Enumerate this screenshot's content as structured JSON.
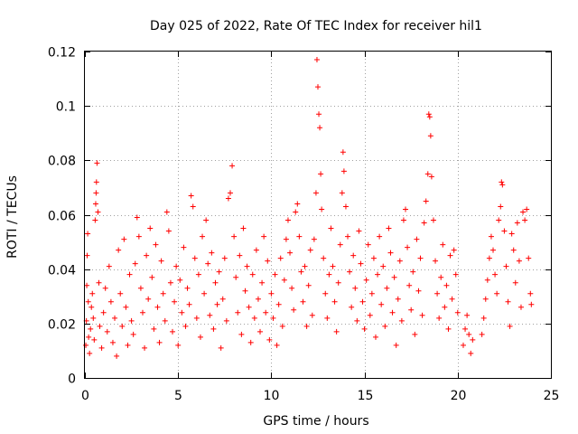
{
  "chart_data": {
    "type": "scatter",
    "title": "Day 025 of 2022, Rate Of TEC Index for receiver hil1",
    "xlabel": "GPS time / hours",
    "ylabel": "ROTI / TECUs",
    "xlim": [
      0,
      25
    ],
    "ylim": [
      0,
      0.12
    ],
    "x_ticks": [
      0,
      5,
      10,
      15,
      20,
      25
    ],
    "y_ticks": [
      0,
      0.02,
      0.04,
      0.06,
      0.08,
      0.1,
      0.12
    ],
    "x_tick_labels": [
      "0",
      "5",
      "10",
      "15",
      "20",
      "25"
    ],
    "y_tick_labels": [
      "0",
      "0.02",
      "0.04",
      "0.06",
      "0.08",
      "0.1",
      "0.12"
    ],
    "grid": true,
    "marker": "+",
    "color": "#ff0000",
    "series": [
      {
        "points": [
          [
            0.05,
            0.012
          ],
          [
            0.08,
            0.021
          ],
          [
            0.1,
            0.034
          ],
          [
            0.12,
            0.045
          ],
          [
            0.15,
            0.053
          ],
          [
            0.18,
            0.028
          ],
          [
            0.2,
            0.015
          ],
          [
            0.25,
            0.009
          ],
          [
            0.3,
            0.018
          ],
          [
            0.35,
            0.026
          ],
          [
            0.4,
            0.031
          ],
          [
            0.45,
            0.022
          ],
          [
            0.5,
            0.014
          ],
          [
            0.55,
            0.058
          ],
          [
            0.58,
            0.064
          ],
          [
            0.6,
            0.068
          ],
          [
            0.62,
            0.072
          ],
          [
            0.65,
            0.079
          ],
          [
            0.7,
            0.061
          ],
          [
            0.75,
            0.035
          ],
          [
            0.8,
            0.019
          ],
          [
            0.9,
            0.011
          ],
          [
            1.0,
            0.024
          ],
          [
            1.1,
            0.033
          ],
          [
            1.2,
            0.017
          ],
          [
            1.3,
            0.041
          ],
          [
            1.4,
            0.028
          ],
          [
            1.5,
            0.013
          ],
          [
            1.6,
            0.022
          ],
          [
            1.7,
            0.008
          ],
          [
            1.8,
            0.047
          ],
          [
            1.9,
            0.031
          ],
          [
            2.0,
            0.019
          ],
          [
            2.1,
            0.051
          ],
          [
            2.2,
            0.026
          ],
          [
            2.3,
            0.012
          ],
          [
            2.4,
            0.038
          ],
          [
            2.5,
            0.021
          ],
          [
            2.6,
            0.016
          ],
          [
            2.7,
            0.042
          ],
          [
            2.8,
            0.059
          ],
          [
            2.9,
            0.052
          ],
          [
            3.0,
            0.033
          ],
          [
            3.1,
            0.024
          ],
          [
            3.2,
            0.011
          ],
          [
            3.3,
            0.045
          ],
          [
            3.4,
            0.029
          ],
          [
            3.5,
            0.055
          ],
          [
            3.6,
            0.037
          ],
          [
            3.7,
            0.018
          ],
          [
            3.8,
            0.049
          ],
          [
            3.9,
            0.026
          ],
          [
            4.0,
            0.013
          ],
          [
            4.1,
            0.043
          ],
          [
            4.2,
            0.031
          ],
          [
            4.3,
            0.021
          ],
          [
            4.4,
            0.061
          ],
          [
            4.5,
            0.054
          ],
          [
            4.6,
            0.035
          ],
          [
            4.7,
            0.017
          ],
          [
            4.8,
            0.028
          ],
          [
            4.9,
            0.041
          ],
          [
            5.0,
            0.012
          ],
          [
            5.1,
            0.036
          ],
          [
            5.2,
            0.024
          ],
          [
            5.3,
            0.048
          ],
          [
            5.4,
            0.019
          ],
          [
            5.5,
            0.033
          ],
          [
            5.6,
            0.027
          ],
          [
            5.7,
            0.067
          ],
          [
            5.8,
            0.063
          ],
          [
            5.9,
            0.044
          ],
          [
            6.0,
            0.022
          ],
          [
            6.1,
            0.038
          ],
          [
            6.2,
            0.015
          ],
          [
            6.3,
            0.052
          ],
          [
            6.4,
            0.031
          ],
          [
            6.5,
            0.058
          ],
          [
            6.6,
            0.042
          ],
          [
            6.7,
            0.023
          ],
          [
            6.8,
            0.046
          ],
          [
            6.9,
            0.018
          ],
          [
            7.0,
            0.035
          ],
          [
            7.1,
            0.027
          ],
          [
            7.2,
            0.039
          ],
          [
            7.3,
            0.011
          ],
          [
            7.4,
            0.029
          ],
          [
            7.5,
            0.044
          ],
          [
            7.6,
            0.021
          ],
          [
            7.7,
            0.066
          ],
          [
            7.8,
            0.068
          ],
          [
            7.9,
            0.078
          ],
          [
            8.0,
            0.052
          ],
          [
            8.1,
            0.037
          ],
          [
            8.2,
            0.024
          ],
          [
            8.3,
            0.045
          ],
          [
            8.4,
            0.016
          ],
          [
            8.5,
            0.055
          ],
          [
            8.6,
            0.032
          ],
          [
            8.7,
            0.041
          ],
          [
            8.8,
            0.026
          ],
          [
            8.9,
            0.013
          ],
          [
            9.0,
            0.038
          ],
          [
            9.1,
            0.022
          ],
          [
            9.2,
            0.047
          ],
          [
            9.3,
            0.029
          ],
          [
            9.4,
            0.017
          ],
          [
            9.5,
            0.035
          ],
          [
            9.6,
            0.052
          ],
          [
            9.7,
            0.024
          ],
          [
            9.8,
            0.043
          ],
          [
            9.9,
            0.014
          ],
          [
            10.0,
            0.031
          ],
          [
            10.1,
            0.022
          ],
          [
            10.2,
            0.038
          ],
          [
            10.3,
            0.012
          ],
          [
            10.4,
            0.027
          ],
          [
            10.5,
            0.044
          ],
          [
            10.6,
            0.019
          ],
          [
            10.7,
            0.036
          ],
          [
            10.8,
            0.051
          ],
          [
            10.9,
            0.058
          ],
          [
            11.0,
            0.046
          ],
          [
            11.1,
            0.033
          ],
          [
            11.2,
            0.025
          ],
          [
            11.3,
            0.061
          ],
          [
            11.4,
            0.064
          ],
          [
            11.5,
            0.052
          ],
          [
            11.6,
            0.039
          ],
          [
            11.7,
            0.028
          ],
          [
            11.8,
            0.041
          ],
          [
            11.9,
            0.019
          ],
          [
            12.0,
            0.034
          ],
          [
            12.1,
            0.047
          ],
          [
            12.2,
            0.023
          ],
          [
            12.3,
            0.051
          ],
          [
            12.4,
            0.068
          ],
          [
            12.45,
            0.117
          ],
          [
            12.5,
            0.107
          ],
          [
            12.55,
            0.097
          ],
          [
            12.6,
            0.092
          ],
          [
            12.65,
            0.075
          ],
          [
            12.7,
            0.062
          ],
          [
            12.8,
            0.044
          ],
          [
            12.9,
            0.031
          ],
          [
            13.0,
            0.022
          ],
          [
            13.1,
            0.038
          ],
          [
            13.2,
            0.055
          ],
          [
            13.3,
            0.041
          ],
          [
            13.4,
            0.028
          ],
          [
            13.5,
            0.017
          ],
          [
            13.6,
            0.035
          ],
          [
            13.7,
            0.049
          ],
          [
            13.8,
            0.068
          ],
          [
            13.85,
            0.083
          ],
          [
            13.9,
            0.076
          ],
          [
            14.0,
            0.063
          ],
          [
            14.1,
            0.052
          ],
          [
            14.2,
            0.039
          ],
          [
            14.3,
            0.026
          ],
          [
            14.4,
            0.045
          ],
          [
            14.5,
            0.033
          ],
          [
            14.6,
            0.021
          ],
          [
            14.7,
            0.054
          ],
          [
            14.8,
            0.042
          ],
          [
            14.9,
            0.028
          ],
          [
            15.0,
            0.018
          ],
          [
            15.1,
            0.036
          ],
          [
            15.2,
            0.049
          ],
          [
            15.3,
            0.023
          ],
          [
            15.4,
            0.031
          ],
          [
            15.5,
            0.044
          ],
          [
            15.6,
            0.015
          ],
          [
            15.7,
            0.038
          ],
          [
            15.8,
            0.052
          ],
          [
            15.9,
            0.027
          ],
          [
            16.0,
            0.041
          ],
          [
            16.1,
            0.019
          ],
          [
            16.2,
            0.033
          ],
          [
            16.3,
            0.055
          ],
          [
            16.4,
            0.046
          ],
          [
            16.5,
            0.024
          ],
          [
            16.6,
            0.037
          ],
          [
            16.7,
            0.012
          ],
          [
            16.8,
            0.029
          ],
          [
            16.9,
            0.043
          ],
          [
            17.0,
            0.021
          ],
          [
            17.1,
            0.058
          ],
          [
            17.2,
            0.062
          ],
          [
            17.3,
            0.048
          ],
          [
            17.4,
            0.034
          ],
          [
            17.5,
            0.025
          ],
          [
            17.6,
            0.039
          ],
          [
            17.7,
            0.016
          ],
          [
            17.8,
            0.051
          ],
          [
            17.9,
            0.032
          ],
          [
            18.0,
            0.044
          ],
          [
            18.1,
            0.023
          ],
          [
            18.2,
            0.057
          ],
          [
            18.3,
            0.065
          ],
          [
            18.4,
            0.075
          ],
          [
            18.45,
            0.097
          ],
          [
            18.5,
            0.096
          ],
          [
            18.55,
            0.089
          ],
          [
            18.6,
            0.074
          ],
          [
            18.7,
            0.058
          ],
          [
            18.8,
            0.043
          ],
          [
            18.9,
            0.031
          ],
          [
            19.0,
            0.022
          ],
          [
            19.1,
            0.037
          ],
          [
            19.2,
            0.049
          ],
          [
            19.3,
            0.026
          ],
          [
            19.4,
            0.034
          ],
          [
            19.5,
            0.018
          ],
          [
            19.6,
            0.045
          ],
          [
            19.7,
            0.029
          ],
          [
            19.8,
            0.047
          ],
          [
            19.9,
            0.038
          ],
          [
            20.0,
            0.024
          ],
          [
            20.3,
            0.012
          ],
          [
            20.4,
            0.018
          ],
          [
            20.5,
            0.023
          ],
          [
            20.6,
            0.016
          ],
          [
            20.7,
            0.009
          ],
          [
            20.8,
            0.014
          ],
          [
            21.3,
            0.016
          ],
          [
            21.4,
            0.022
          ],
          [
            21.5,
            0.029
          ],
          [
            21.6,
            0.036
          ],
          [
            21.7,
            0.044
          ],
          [
            21.8,
            0.052
          ],
          [
            21.9,
            0.047
          ],
          [
            22.0,
            0.038
          ],
          [
            22.1,
            0.031
          ],
          [
            22.2,
            0.058
          ],
          [
            22.3,
            0.063
          ],
          [
            22.35,
            0.072
          ],
          [
            22.4,
            0.071
          ],
          [
            22.5,
            0.054
          ],
          [
            22.6,
            0.041
          ],
          [
            22.7,
            0.028
          ],
          [
            22.8,
            0.019
          ],
          [
            22.9,
            0.053
          ],
          [
            23.0,
            0.047
          ],
          [
            23.1,
            0.035
          ],
          [
            23.2,
            0.057
          ],
          [
            23.3,
            0.043
          ],
          [
            23.4,
            0.026
          ],
          [
            23.5,
            0.061
          ],
          [
            23.6,
            0.058
          ],
          [
            23.7,
            0.062
          ],
          [
            23.8,
            0.044
          ],
          [
            23.9,
            0.031
          ],
          [
            23.95,
            0.027
          ]
        ]
      }
    ]
  }
}
